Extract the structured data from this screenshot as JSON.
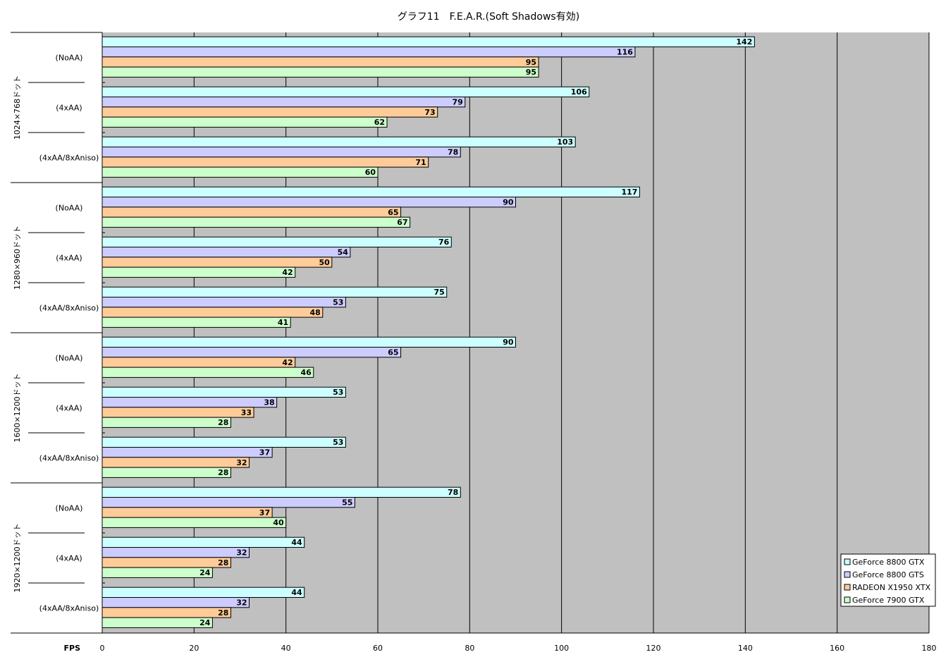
{
  "chart_data": {
    "type": "bar",
    "orientation": "horizontal",
    "title": "グラフ11　F.E.A.R.(Soft Shadows有効)",
    "xlabel": "FPS",
    "xlim": [
      0,
      180
    ],
    "x_ticks": [
      0,
      20,
      40,
      60,
      80,
      100,
      120,
      140,
      160,
      180
    ],
    "grid": true,
    "legend_position": "bottom-right",
    "groups": [
      {
        "label": "1024×768ドット",
        "settings": [
          {
            "label": "(NoAA)",
            "values": [
              142,
              116,
              95,
              95
            ]
          },
          {
            "label": "(4xAA)",
            "values": [
              106,
              79,
              73,
              62
            ]
          },
          {
            "label": "(4xAA/8xAniso)",
            "values": [
              103,
              78,
              71,
              60
            ]
          }
        ]
      },
      {
        "label": "1280×960ドット",
        "settings": [
          {
            "label": "(NoAA)",
            "values": [
              117,
              90,
              65,
              67
            ]
          },
          {
            "label": "(4xAA)",
            "values": [
              76,
              54,
              50,
              42
            ]
          },
          {
            "label": "(4xAA/8xAniso)",
            "values": [
              75,
              53,
              48,
              41
            ]
          }
        ]
      },
      {
        "label": "1600×1200ドット",
        "settings": [
          {
            "label": "(NoAA)",
            "values": [
              90,
              65,
              42,
              46
            ]
          },
          {
            "label": "(4xAA)",
            "values": [
              53,
              38,
              33,
              28
            ]
          },
          {
            "label": "(4xAA/8xAniso)",
            "values": [
              53,
              37,
              32,
              28
            ]
          }
        ]
      },
      {
        "label": "1920×1200ドット",
        "settings": [
          {
            "label": "(NoAA)",
            "values": [
              78,
              55,
              37,
              40
            ]
          },
          {
            "label": "(4xAA)",
            "values": [
              44,
              32,
              28,
              24
            ]
          },
          {
            "label": "(4xAA/8xAniso)",
            "values": [
              44,
              32,
              28,
              24
            ]
          }
        ]
      }
    ],
    "series": [
      {
        "name": "GeForce 8800 GTX",
        "color": "#ccffff"
      },
      {
        "name": "GeForce 8800 GTS",
        "color": "#ccccff"
      },
      {
        "name": "RADEON X1950 XTX",
        "color": "#ffcc99"
      },
      {
        "name": "GeForce 7900 GTX",
        "color": "#ccffcc"
      }
    ],
    "plot_background": "#c0c0c0"
  }
}
